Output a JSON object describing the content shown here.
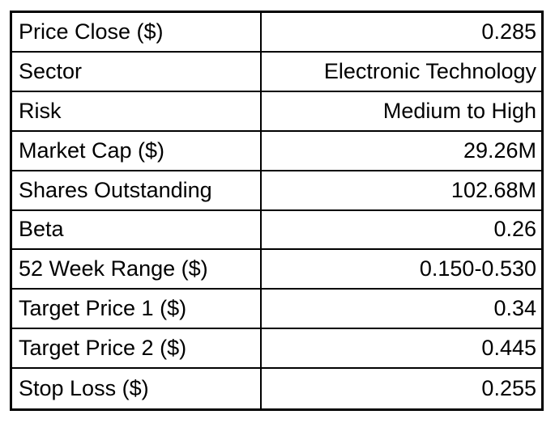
{
  "colors": {
    "background": "#ffffff",
    "border": "#000000",
    "text": "#000000"
  },
  "table": {
    "rows": [
      {
        "label": "Price Close ($)",
        "value": "0.285"
      },
      {
        "label": "Sector",
        "value": "Electronic Technology"
      },
      {
        "label": "Risk",
        "value": "Medium to High"
      },
      {
        "label": "Market Cap ($)",
        "value": "29.26M"
      },
      {
        "label": "Shares Outstanding",
        "value": "102.68M"
      },
      {
        "label": "Beta",
        "value": "0.26"
      },
      {
        "label": "52 Week Range ($)",
        "value": "0.150-0.530"
      },
      {
        "label": "Target Price 1 ($)",
        "value": "0.34"
      },
      {
        "label": "Target Price 2 ($)",
        "value": "0.445"
      },
      {
        "label": "Stop Loss ($)",
        "value": "0.255"
      }
    ]
  }
}
